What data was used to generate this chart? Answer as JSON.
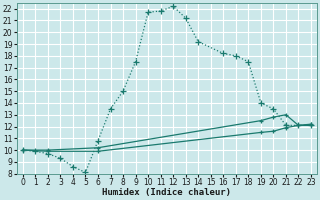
{
  "xlabel": "Humidex (Indice chaleur)",
  "bg_color": "#cce8ea",
  "grid_color": "#ffffff",
  "line_color": "#1a7a6e",
  "xlim": [
    -0.5,
    23.5
  ],
  "ylim": [
    8,
    22.5
  ],
  "xticks": [
    0,
    1,
    2,
    3,
    4,
    5,
    6,
    7,
    8,
    9,
    10,
    11,
    12,
    13,
    14,
    15,
    16,
    17,
    18,
    19,
    20,
    21,
    22,
    23
  ],
  "yticks": [
    8,
    9,
    10,
    11,
    12,
    13,
    14,
    15,
    16,
    17,
    18,
    19,
    20,
    21,
    22
  ],
  "curve1_x": [
    0,
    1,
    2,
    3,
    4,
    5,
    6,
    7,
    8,
    9,
    10,
    11,
    12,
    13,
    14,
    16,
    17,
    18,
    19,
    20,
    21,
    22,
    23
  ],
  "curve1_y": [
    10.0,
    9.9,
    9.7,
    9.3,
    8.6,
    8.1,
    10.8,
    13.5,
    15.0,
    17.5,
    21.7,
    21.8,
    22.2,
    21.2,
    19.2,
    18.2,
    18.0,
    17.5,
    14.0,
    13.5,
    12.1,
    12.1,
    12.1
  ],
  "curve2_x": [
    0,
    2,
    6,
    19,
    20,
    21,
    22,
    23
  ],
  "curve2_y": [
    10.0,
    10.0,
    10.2,
    12.5,
    12.8,
    13.0,
    12.1,
    12.2
  ],
  "curve3_x": [
    0,
    2,
    6,
    19,
    20,
    21,
    22,
    23
  ],
  "curve3_y": [
    10.0,
    9.9,
    9.9,
    11.5,
    11.6,
    11.9,
    12.1,
    12.1
  ]
}
